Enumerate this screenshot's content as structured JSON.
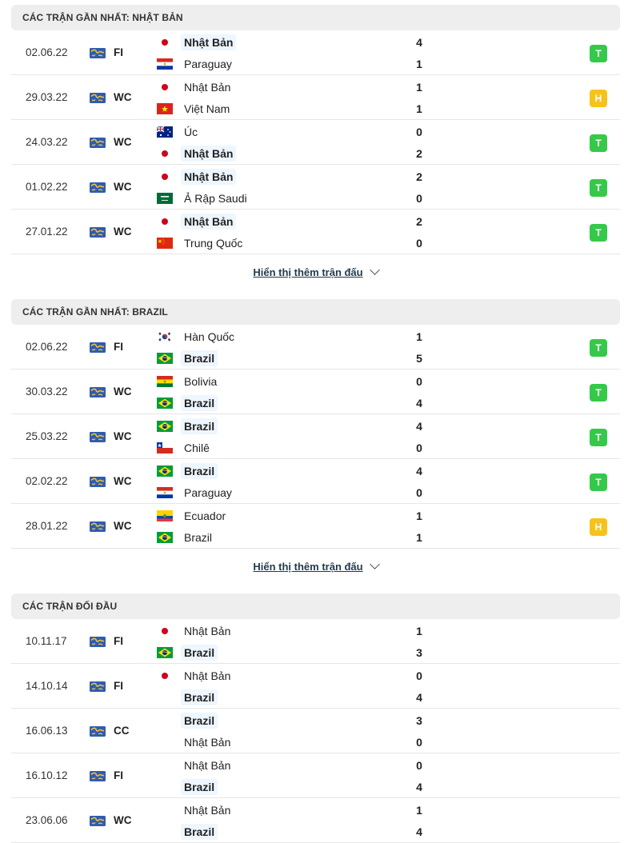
{
  "colors": {
    "win_badge": "#35c94a",
    "draw_badge": "#f6c31c"
  },
  "sections": [
    {
      "title": "CÁC TRẬN GẦN NHẤT: NHẬT BẢN",
      "show_more": "Hiển thị thêm trận đấu",
      "matches": [
        {
          "date": "02.06.22",
          "comp": "FI",
          "home": {
            "name": "Nhật Bản",
            "flag": "japan",
            "bold": true
          },
          "away": {
            "name": "Paraguay",
            "flag": "paraguay",
            "bold": false
          },
          "home_score": "4",
          "away_score": "1",
          "result": "T"
        },
        {
          "date": "29.03.22",
          "comp": "WC",
          "home": {
            "name": "Nhật Bản",
            "flag": "japan",
            "bold": false
          },
          "away": {
            "name": "Việt Nam",
            "flag": "vietnam",
            "bold": false
          },
          "home_score": "1",
          "away_score": "1",
          "result": "H"
        },
        {
          "date": "24.03.22",
          "comp": "WC",
          "home": {
            "name": "Úc",
            "flag": "australia",
            "bold": false
          },
          "away": {
            "name": "Nhật Bản",
            "flag": "japan",
            "bold": true
          },
          "home_score": "0",
          "away_score": "2",
          "result": "T"
        },
        {
          "date": "01.02.22",
          "comp": "WC",
          "home": {
            "name": "Nhật Bản",
            "flag": "japan",
            "bold": true
          },
          "away": {
            "name": "Ả Rập Saudi",
            "flag": "saudi",
            "bold": false
          },
          "home_score": "2",
          "away_score": "0",
          "result": "T"
        },
        {
          "date": "27.01.22",
          "comp": "WC",
          "home": {
            "name": "Nhật Bản",
            "flag": "japan",
            "bold": true
          },
          "away": {
            "name": "Trung Quốc",
            "flag": "china",
            "bold": false
          },
          "home_score": "2",
          "away_score": "0",
          "result": "T"
        }
      ]
    },
    {
      "title": "CÁC TRẬN GẦN NHẤT: BRAZIL",
      "show_more": "Hiển thị thêm trận đấu",
      "matches": [
        {
          "date": "02.06.22",
          "comp": "FI",
          "home": {
            "name": "Hàn Quốc",
            "flag": "korea",
            "bold": false
          },
          "away": {
            "name": "Brazil",
            "flag": "brazil",
            "bold": true
          },
          "home_score": "1",
          "away_score": "5",
          "result": "T"
        },
        {
          "date": "30.03.22",
          "comp": "WC",
          "home": {
            "name": "Bolivia",
            "flag": "bolivia",
            "bold": false
          },
          "away": {
            "name": "Brazil",
            "flag": "brazil",
            "bold": true
          },
          "home_score": "0",
          "away_score": "4",
          "result": "T"
        },
        {
          "date": "25.03.22",
          "comp": "WC",
          "home": {
            "name": "Brazil",
            "flag": "brazil",
            "bold": true
          },
          "away": {
            "name": "Chilê",
            "flag": "chile",
            "bold": false
          },
          "home_score": "4",
          "away_score": "0",
          "result": "T"
        },
        {
          "date": "02.02.22",
          "comp": "WC",
          "home": {
            "name": "Brazil",
            "flag": "brazil",
            "bold": true
          },
          "away": {
            "name": "Paraguay",
            "flag": "paraguay",
            "bold": false
          },
          "home_score": "4",
          "away_score": "0",
          "result": "T"
        },
        {
          "date": "28.01.22",
          "comp": "WC",
          "home": {
            "name": "Ecuador",
            "flag": "ecuador",
            "bold": false
          },
          "away": {
            "name": "Brazil",
            "flag": "brazil",
            "bold": false
          },
          "home_score": "1",
          "away_score": "1",
          "result": "H"
        }
      ]
    },
    {
      "title": "CÁC TRẬN ĐỐI ĐẦU",
      "show_more": "",
      "matches": [
        {
          "date": "10.11.17",
          "comp": "FI",
          "home": {
            "name": "Nhật Bản",
            "flag": "japan",
            "bold": false
          },
          "away": {
            "name": "Brazil",
            "flag": "brazil",
            "bold": true
          },
          "home_score": "1",
          "away_score": "3",
          "result": ""
        },
        {
          "date": "14.10.14",
          "comp": "FI",
          "home": {
            "name": "Nhật Bản",
            "flag": "japan",
            "bold": false
          },
          "away": {
            "name": "Brazil",
            "flag": "",
            "bold": true
          },
          "home_score": "0",
          "away_score": "4",
          "result": ""
        },
        {
          "date": "16.06.13",
          "comp": "CC",
          "home": {
            "name": "Brazil",
            "flag": "",
            "bold": true
          },
          "away": {
            "name": "Nhật Bản",
            "flag": "",
            "bold": false
          },
          "home_score": "3",
          "away_score": "0",
          "result": ""
        },
        {
          "date": "16.10.12",
          "comp": "FI",
          "home": {
            "name": "Nhật Bản",
            "flag": "",
            "bold": false
          },
          "away": {
            "name": "Brazil",
            "flag": "",
            "bold": true
          },
          "home_score": "0",
          "away_score": "4",
          "result": ""
        },
        {
          "date": "23.06.06",
          "comp": "WC",
          "home": {
            "name": "Nhật Bản",
            "flag": "",
            "bold": false
          },
          "away": {
            "name": "Brazil",
            "flag": "",
            "bold": true
          },
          "home_score": "1",
          "away_score": "4",
          "result": ""
        }
      ]
    }
  ]
}
